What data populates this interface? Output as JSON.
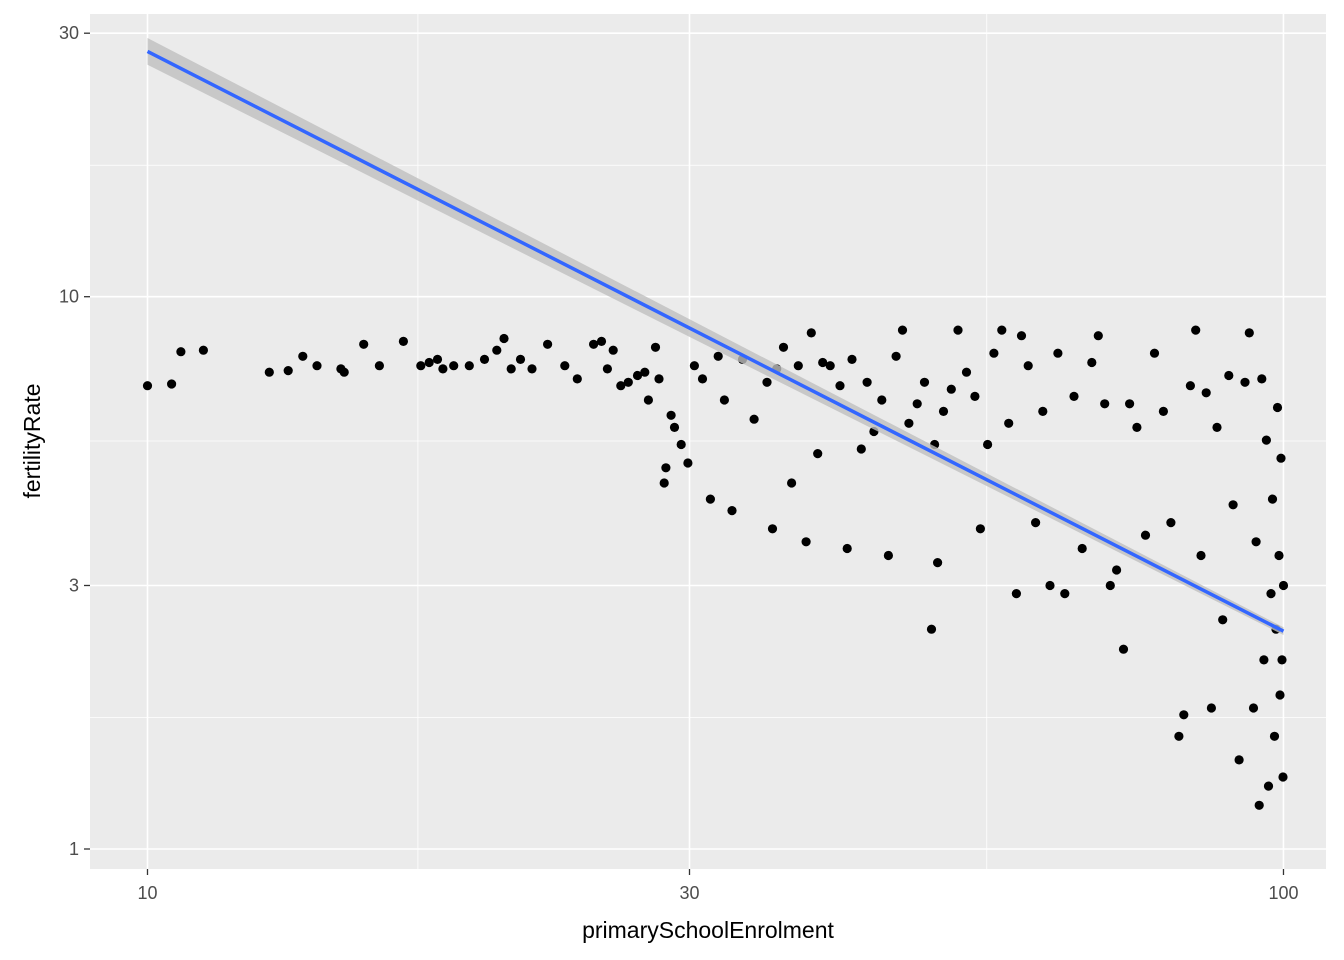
{
  "chart_data": {
    "type": "scatter",
    "title": "",
    "xlabel": "primarySchoolEnrolment",
    "ylabel": "fertilityRate",
    "x_scale": "log10",
    "y_scale": "log10",
    "xlim": [
      8.9,
      109
    ],
    "ylim": [
      0.92,
      32.5
    ],
    "x_ticks": [
      10,
      30,
      100
    ],
    "y_ticks": [
      1,
      3,
      10,
      30
    ],
    "x_tick_labels": [
      "10",
      "30",
      "100"
    ],
    "y_tick_labels": [
      "1",
      "3",
      "10",
      "30"
    ],
    "x_minor_gridlines": [
      17.3,
      54.8
    ],
    "y_minor_gridlines": [
      1.73,
      5.48,
      17.3
    ],
    "grid": true,
    "legend": "none",
    "colors": {
      "panel": "#ebebeb",
      "grid": "#ffffff",
      "point": "#000000",
      "smooth_line": "#3366ff",
      "confidence_band": "#bfbfbf"
    },
    "smooth": {
      "method": "linear regression on log-log scales",
      "x": [
        10,
        100
      ],
      "y": [
        27.8,
        2.48
      ],
      "band_lower": [
        26.3,
        2.44
      ],
      "band_upper": [
        29.4,
        2.52
      ]
    },
    "scatter_points": [
      [
        10.0,
        6.9
      ],
      [
        10.5,
        6.95
      ],
      [
        10.7,
        7.95
      ],
      [
        11.2,
        8.0
      ],
      [
        12.8,
        7.3
      ],
      [
        13.3,
        7.35
      ],
      [
        13.7,
        7.8
      ],
      [
        14.1,
        7.5
      ],
      [
        14.8,
        7.4
      ],
      [
        14.9,
        7.3
      ],
      [
        15.5,
        8.2
      ],
      [
        16.0,
        7.5
      ],
      [
        16.8,
        8.3
      ],
      [
        17.4,
        7.5
      ],
      [
        17.7,
        7.6
      ],
      [
        18.0,
        7.7
      ],
      [
        18.2,
        7.4
      ],
      [
        18.6,
        7.5
      ],
      [
        19.2,
        7.5
      ],
      [
        19.8,
        7.7
      ],
      [
        20.3,
        8.0
      ],
      [
        20.6,
        8.4
      ],
      [
        20.9,
        7.4
      ],
      [
        21.3,
        7.7
      ],
      [
        21.8,
        7.4
      ],
      [
        22.5,
        8.2
      ],
      [
        23.3,
        7.5
      ],
      [
        23.9,
        7.1
      ],
      [
        24.7,
        8.2
      ],
      [
        25.1,
        8.3
      ],
      [
        25.4,
        7.4
      ],
      [
        25.7,
        8.0
      ],
      [
        26.1,
        6.9
      ],
      [
        26.5,
        7.0
      ],
      [
        27.0,
        7.2
      ],
      [
        27.4,
        7.3
      ],
      [
        27.6,
        6.5
      ],
      [
        28.0,
        8.1
      ],
      [
        28.2,
        7.1
      ],
      [
        28.5,
        4.6
      ],
      [
        28.6,
        4.9
      ],
      [
        28.9,
        6.1
      ],
      [
        29.1,
        5.8
      ],
      [
        29.5,
        5.4
      ],
      [
        29.9,
        5.0
      ],
      [
        30.3,
        7.5
      ],
      [
        30.8,
        7.1
      ],
      [
        31.3,
        4.3
      ],
      [
        31.8,
        7.8
      ],
      [
        32.2,
        6.5
      ],
      [
        32.7,
        4.1
      ],
      [
        33.4,
        7.7
      ],
      [
        34.2,
        6.0
      ],
      [
        35.1,
        7.0
      ],
      [
        35.5,
        3.8
      ],
      [
        35.8,
        7.4
      ],
      [
        36.3,
        8.1
      ],
      [
        36.9,
        4.6
      ],
      [
        37.4,
        7.5
      ],
      [
        38.0,
        3.6
      ],
      [
        38.4,
        8.6
      ],
      [
        38.9,
        5.2
      ],
      [
        39.3,
        7.6
      ],
      [
        39.9,
        7.5
      ],
      [
        40.7,
        6.9
      ],
      [
        41.3,
        3.5
      ],
      [
        41.7,
        7.7
      ],
      [
        42.5,
        5.3
      ],
      [
        43.0,
        7.0
      ],
      [
        43.6,
        5.7
      ],
      [
        44.3,
        6.5
      ],
      [
        44.9,
        3.4
      ],
      [
        45.6,
        7.8
      ],
      [
        46.2,
        8.7
      ],
      [
        46.8,
        5.9
      ],
      [
        47.6,
        6.4
      ],
      [
        48.3,
        7.0
      ],
      [
        49.0,
        2.5
      ],
      [
        49.3,
        5.4
      ],
      [
        49.6,
        3.3
      ],
      [
        50.2,
        6.2
      ],
      [
        51.0,
        6.8
      ],
      [
        51.7,
        8.7
      ],
      [
        52.6,
        7.3
      ],
      [
        53.5,
        6.6
      ],
      [
        54.1,
        3.8
      ],
      [
        54.9,
        5.4
      ],
      [
        55.6,
        7.9
      ],
      [
        56.5,
        8.7
      ],
      [
        57.3,
        5.9
      ],
      [
        58.2,
        2.9
      ],
      [
        58.8,
        8.5
      ],
      [
        59.6,
        7.5
      ],
      [
        60.5,
        3.9
      ],
      [
        61.4,
        6.2
      ],
      [
        62.3,
        3.0
      ],
      [
        63.3,
        7.9
      ],
      [
        64.2,
        2.9
      ],
      [
        65.4,
        6.6
      ],
      [
        66.5,
        3.5
      ],
      [
        67.8,
        7.6
      ],
      [
        68.7,
        8.5
      ],
      [
        69.6,
        6.4
      ],
      [
        70.4,
        3.0
      ],
      [
        71.3,
        3.2
      ],
      [
        72.3,
        2.3
      ],
      [
        73.2,
        6.4
      ],
      [
        74.3,
        5.8
      ],
      [
        75.6,
        3.7
      ],
      [
        77.0,
        7.9
      ],
      [
        78.4,
        6.2
      ],
      [
        79.6,
        3.9
      ],
      [
        80.9,
        1.6
      ],
      [
        81.7,
        1.75
      ],
      [
        82.8,
        6.9
      ],
      [
        83.7,
        8.7
      ],
      [
        84.6,
        3.4
      ],
      [
        85.5,
        6.7
      ],
      [
        86.4,
        1.8
      ],
      [
        87.4,
        5.8
      ],
      [
        88.4,
        2.6
      ],
      [
        89.5,
        7.2
      ],
      [
        90.3,
        4.2
      ],
      [
        91.4,
        1.45
      ],
      [
        92.5,
        7.0
      ],
      [
        93.3,
        8.6
      ],
      [
        94.1,
        1.8
      ],
      [
        94.6,
        3.6
      ],
      [
        95.2,
        1.2
      ],
      [
        95.7,
        7.1
      ],
      [
        96.1,
        2.2
      ],
      [
        96.6,
        5.5
      ],
      [
        97.0,
        1.3
      ],
      [
        97.5,
        2.9
      ],
      [
        97.8,
        4.3
      ],
      [
        98.2,
        1.6
      ],
      [
        98.5,
        2.5
      ],
      [
        98.8,
        6.3
      ],
      [
        99.1,
        3.4
      ],
      [
        99.3,
        1.9
      ],
      [
        99.5,
        5.1
      ],
      [
        99.7,
        2.2
      ],
      [
        99.9,
        1.35
      ],
      [
        100.0,
        3.0
      ]
    ]
  }
}
